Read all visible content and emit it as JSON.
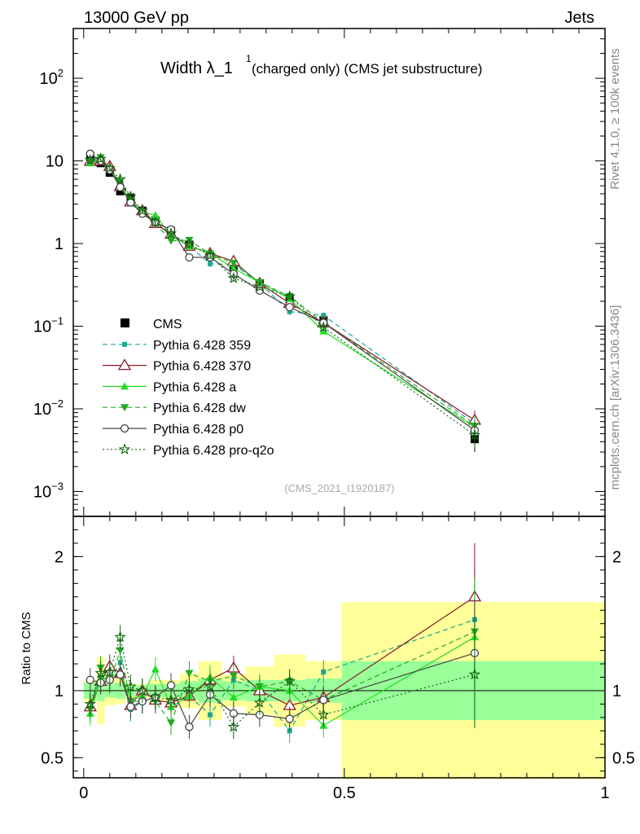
{
  "header": {
    "left": "13000 GeV pp",
    "right": "Jets"
  },
  "side_labels": {
    "rivet": "Rivet 4.1.0, ≥ 100k events",
    "mcplots": "mcplots.cern.ch [arXiv:1306.3436]"
  },
  "chart_data": [
    {
      "type": "line",
      "panel": "main",
      "title_main": "Width λ_1",
      "title_sup": "1",
      "title_rest": " (charged only) (CMS jet substructure)",
      "watermark": "(CMS_2021_I1920187)",
      "yscale": "log",
      "ylim": [
        0.0005,
        400
      ],
      "xlim": [
        -0.02,
        1.0
      ],
      "y_ticks": [
        {
          "v": 0.001,
          "base": "10",
          "exp": "−3"
        },
        {
          "v": 0.01,
          "base": "10",
          "exp": "−2"
        },
        {
          "v": 0.1,
          "base": "10",
          "exp": "−1"
        },
        {
          "v": 1,
          "base": "1",
          "exp": ""
        },
        {
          "v": 10,
          "base": "10",
          "exp": ""
        },
        {
          "v": 100,
          "base": "10",
          "exp": "2"
        }
      ],
      "x": [
        0.0125,
        0.0325,
        0.05,
        0.07,
        0.09,
        0.1125,
        0.1375,
        0.1675,
        0.2025,
        0.2425,
        0.2875,
        0.3375,
        0.395,
        0.46,
        0.75
      ],
      "series": [
        {
          "name": "CMS",
          "style": "data",
          "color": "#000000",
          "values": [
            11.3,
            9.4,
            7.2,
            4.3,
            3.6,
            2.5,
            1.9,
            1.42,
            0.97,
            0.7,
            0.52,
            0.33,
            0.215,
            0.118,
            0.0043
          ]
        },
        {
          "name": "Pythia 6.428 359",
          "style": "dashed",
          "marker": "square",
          "color": "#1aa890",
          "values": [
            10.2,
            10.4,
            7.7,
            5.2,
            3.1,
            2.3,
            1.75,
            1.3,
            0.93,
            0.57,
            0.56,
            0.33,
            0.15,
            0.135,
            0.0066
          ]
        },
        {
          "name": "Pythia 6.428 370",
          "style": "solid",
          "marker": "tri-open",
          "color": "#8b1a2a",
          "values": [
            9.9,
            10.0,
            8.6,
            4.9,
            3.2,
            2.5,
            1.75,
            1.3,
            0.93,
            0.76,
            0.61,
            0.33,
            0.19,
            0.11,
            0.0073
          ]
        },
        {
          "name": "Pythia 6.428 a",
          "style": "solid",
          "marker": "tri-up",
          "color": "#22dd22",
          "values": [
            9.4,
            10.2,
            7.9,
            4.9,
            3.4,
            2.4,
            2.2,
            1.25,
            0.93,
            0.77,
            0.5,
            0.34,
            0.215,
            0.087,
            0.006
          ]
        },
        {
          "name": "Pythia 6.428 dw",
          "style": "dashed",
          "marker": "tri-down",
          "color": "#22aa22",
          "values": [
            9.7,
            11.0,
            7.7,
            5.6,
            3.3,
            2.3,
            1.75,
            1.08,
            1.1,
            0.75,
            0.58,
            0.34,
            0.23,
            0.11,
            0.0062
          ]
        },
        {
          "name": "Pythia 6.428 p0",
          "style": "solid",
          "marker": "circle-open",
          "color": "#444444",
          "values": [
            12.2,
            10.0,
            7.8,
            4.8,
            3.15,
            2.3,
            1.8,
            1.48,
            0.68,
            0.68,
            0.43,
            0.27,
            0.17,
            0.11,
            0.0055
          ]
        },
        {
          "name": "Pythia 6.428 pro-q2o",
          "style": "dotted",
          "marker": "star",
          "color": "#116611",
          "values": [
            10.2,
            10.6,
            8.2,
            6.0,
            3.7,
            2.5,
            1.8,
            1.32,
            0.98,
            0.72,
            0.38,
            0.3,
            0.23,
            0.097,
            0.0048
          ]
        }
      ]
    },
    {
      "type": "line",
      "panel": "ratio",
      "ylabel": "Ratio to CMS",
      "yscale": "linear",
      "ylim": [
        0.35,
        2.3
      ],
      "xlim": [
        -0.02,
        1.0
      ],
      "y_ticks": [
        0.5,
        1,
        2
      ],
      "x_ticks": [
        0,
        0.5,
        1
      ],
      "x_tick_labels": [
        "0",
        "0.5",
        "1"
      ],
      "bin_edges": [
        0.0,
        0.025,
        0.04,
        0.06,
        0.08,
        0.1,
        0.125,
        0.15,
        0.185,
        0.22,
        0.265,
        0.31,
        0.365,
        0.425,
        0.495,
        1.0
      ],
      "band_inner": [
        0.06,
        0.08,
        0.05,
        0.06,
        0.04,
        0.04,
        0.05,
        0.05,
        0.07,
        0.09,
        0.07,
        0.08,
        0.08,
        0.09,
        0.22
      ],
      "band_outer": [
        0.08,
        0.25,
        0.11,
        0.1,
        0.05,
        0.05,
        0.08,
        0.08,
        0.13,
        0.22,
        0.12,
        0.18,
        0.27,
        0.22,
        0.66
      ],
      "x": [
        0.0125,
        0.0325,
        0.05,
        0.07,
        0.09,
        0.1125,
        0.1375,
        0.1675,
        0.2025,
        0.2425,
        0.2875,
        0.3375,
        0.395,
        0.46,
        0.75
      ],
      "series": [
        {
          "name": "Pythia 6.428 359",
          "color": "#1aa890",
          "values": [
            0.9,
            1.1,
            1.07,
            1.21,
            0.86,
            0.92,
            0.92,
            0.92,
            0.96,
            0.82,
            1.08,
            1.0,
            0.7,
            1.14,
            1.53
          ]
        },
        {
          "name": "Pythia 6.428 370",
          "color": "#8b1a2a",
          "values": [
            0.88,
            1.07,
            1.18,
            1.13,
            0.89,
            1.0,
            0.93,
            0.91,
            0.96,
            1.08,
            1.17,
            1.0,
            0.89,
            0.95,
            1.7
          ]
        },
        {
          "name": "Pythia 6.428 a",
          "color": "#22dd22",
          "values": [
            0.83,
            1.09,
            1.1,
            1.14,
            0.94,
            0.96,
            1.16,
            0.88,
            0.96,
            1.1,
            0.95,
            1.03,
            1.0,
            0.74,
            1.4
          ]
        },
        {
          "name": "Pythia 6.428 dw",
          "color": "#22aa22",
          "values": [
            0.86,
            1.17,
            1.07,
            1.3,
            0.92,
            0.92,
            0.92,
            0.76,
            1.13,
            1.07,
            1.11,
            1.03,
            1.07,
            0.93,
            1.44
          ]
        },
        {
          "name": "Pythia 6.428 p0",
          "color": "#444444",
          "values": [
            1.08,
            1.06,
            1.08,
            1.12,
            0.88,
            0.92,
            0.95,
            1.04,
            0.73,
            0.97,
            0.83,
            0.82,
            0.79,
            0.93,
            1.28
          ]
        },
        {
          "name": "Pythia 6.428 pro-q2o",
          "color": "#116611",
          "values": [
            0.9,
            1.13,
            1.14,
            1.4,
            1.03,
            1.0,
            0.95,
            0.93,
            1.01,
            1.03,
            0.73,
            0.91,
            1.07,
            0.82,
            1.12
          ]
        }
      ]
    }
  ]
}
